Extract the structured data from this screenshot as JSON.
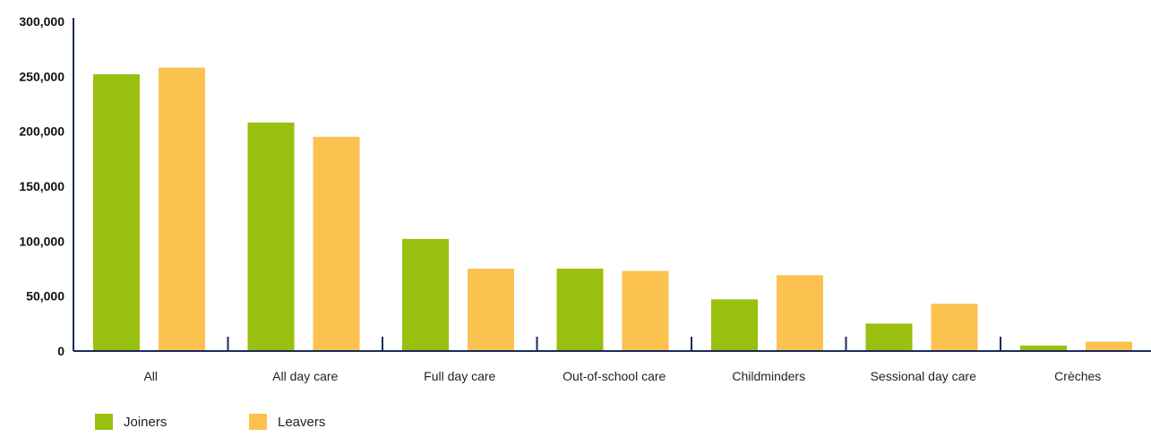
{
  "chart_data": {
    "type": "bar",
    "categories": [
      "All",
      "All day care",
      "Full day care",
      "Out-of-school care",
      "Childminders",
      "Sessional day care",
      "Crèches"
    ],
    "series": [
      {
        "name": "Joiners",
        "color": "#99bf0f",
        "values": [
          252000,
          208000,
          102000,
          75000,
          47000,
          25000,
          5000
        ]
      },
      {
        "name": "Leavers",
        "color": "#fbc24f",
        "values": [
          258000,
          195000,
          75000,
          73000,
          69000,
          43000,
          8500
        ]
      }
    ],
    "yticks": [
      "0",
      "50,000",
      "100,000",
      "150,000",
      "200,000",
      "250,000",
      "300,000"
    ],
    "ylim": [
      0,
      300000
    ],
    "axis_color": "#1b2a5c",
    "grid": false,
    "legend_position": "bottom-left"
  }
}
